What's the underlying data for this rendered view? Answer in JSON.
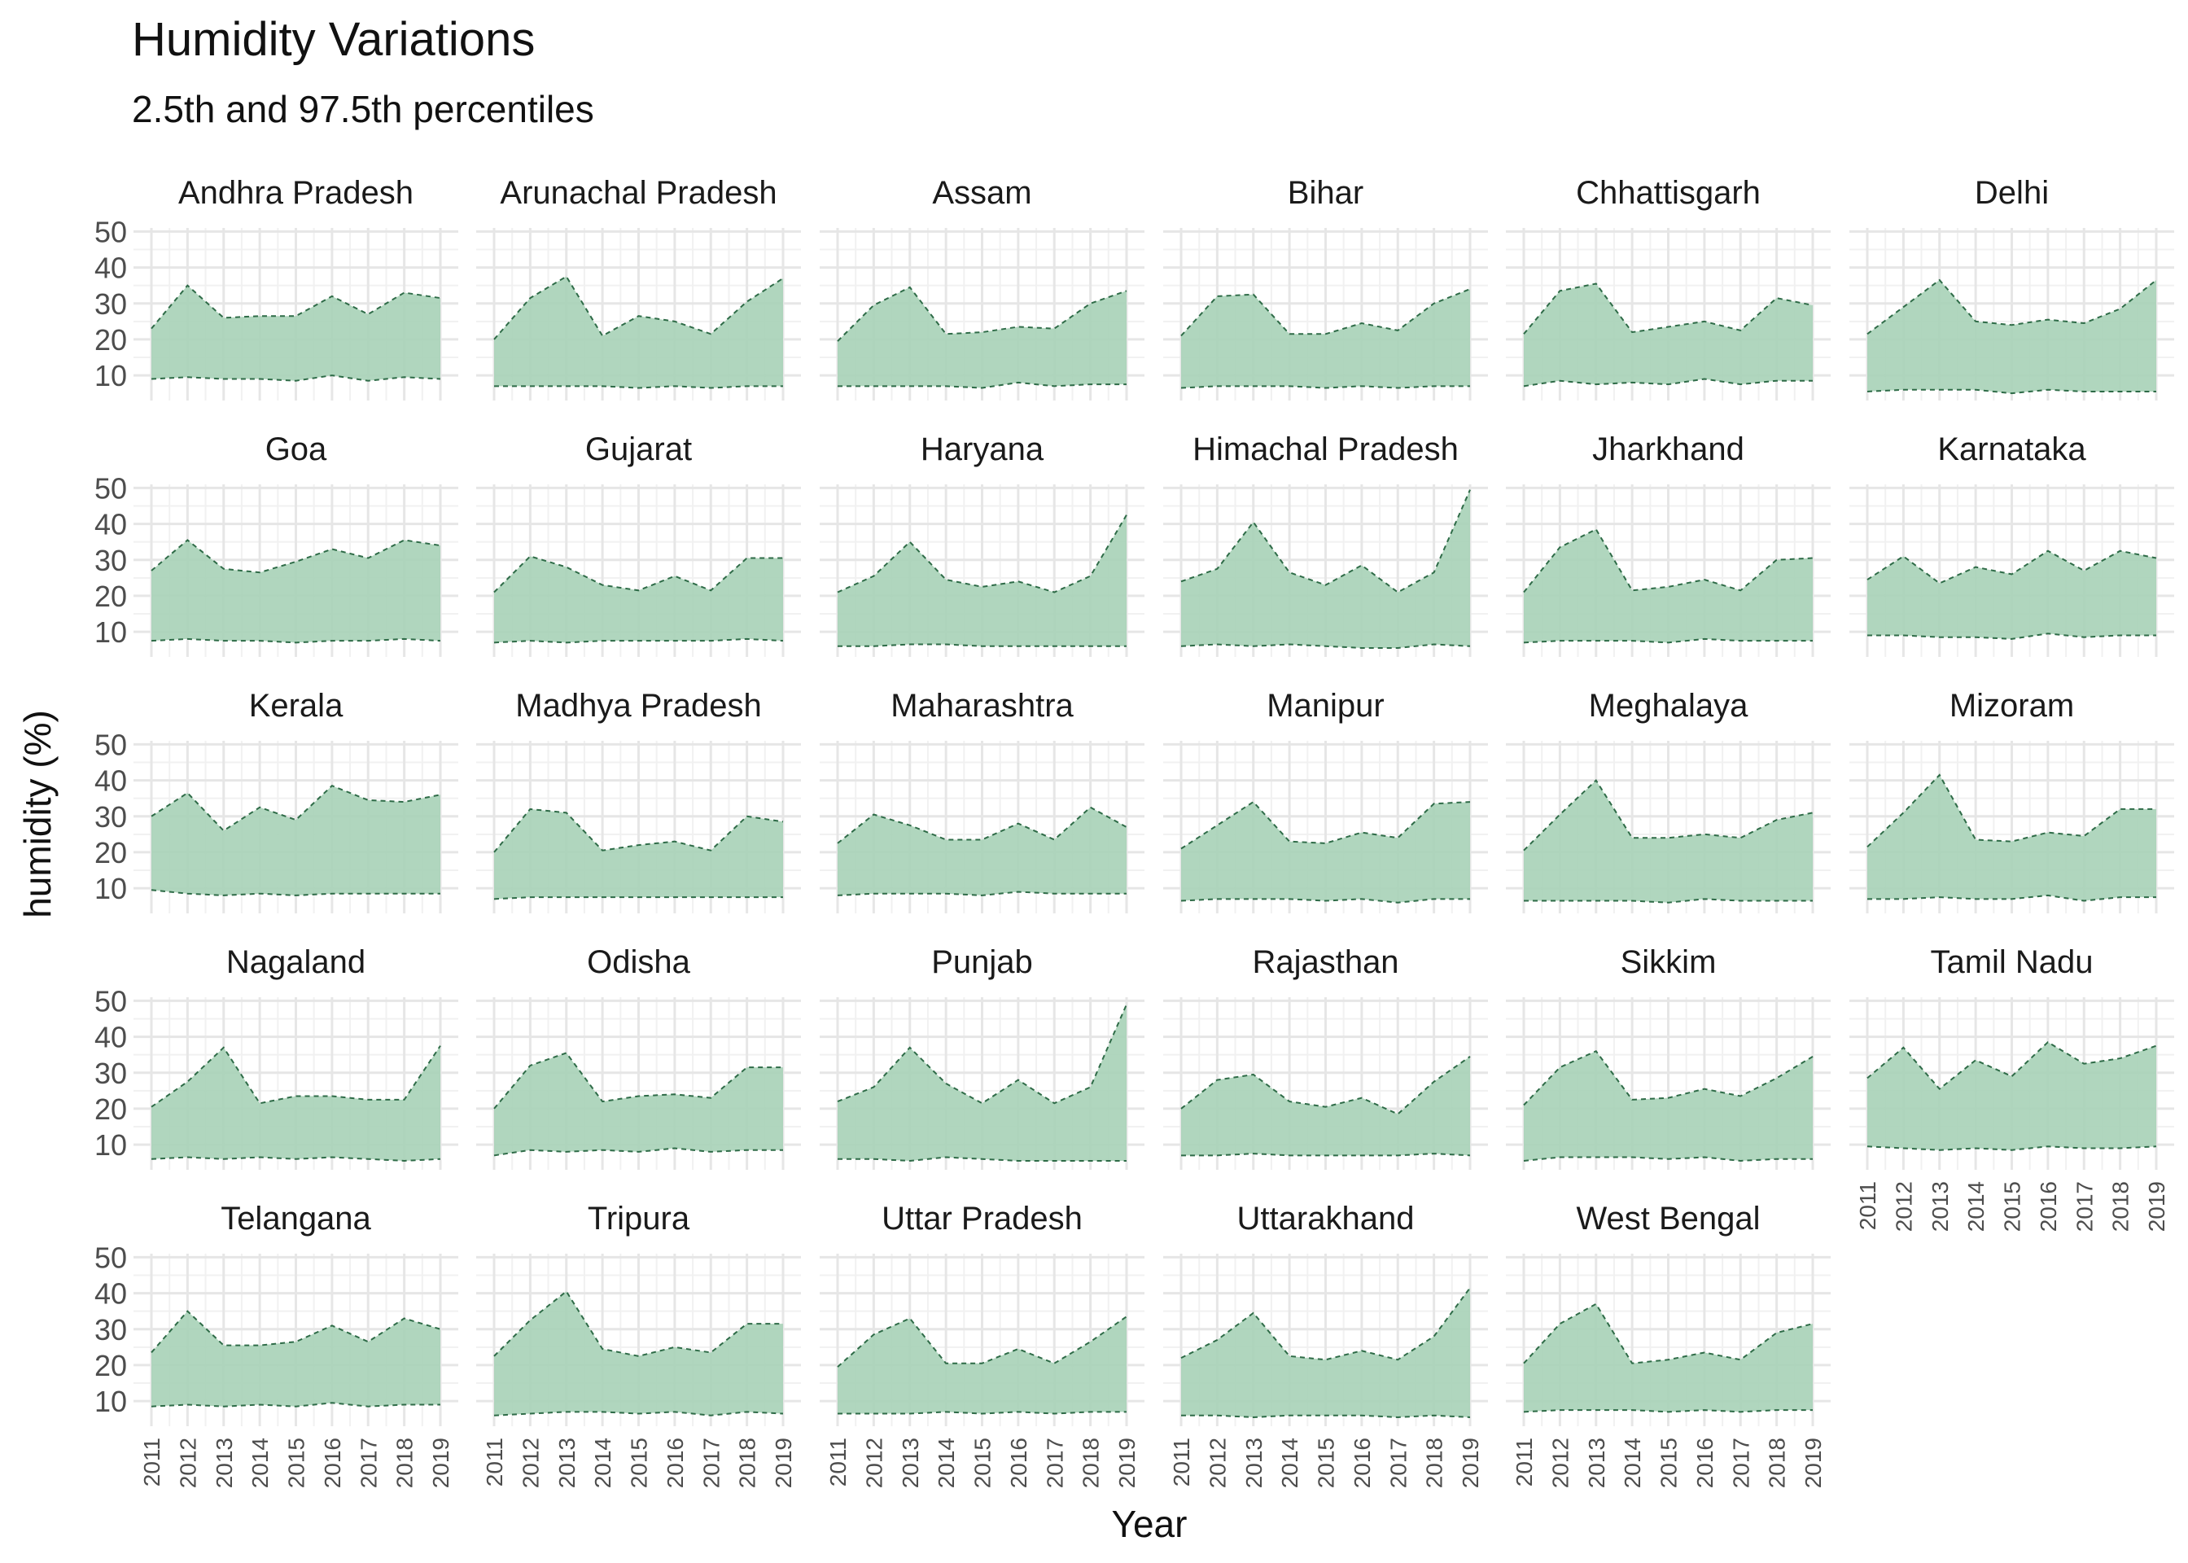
{
  "chart_data": {
    "type": "area",
    "title": "Humidity Variations",
    "subtitle": "2.5th and 97.5th percentiles",
    "xlabel": "Year",
    "ylabel": "humidity (%)",
    "x": [
      2011,
      2012,
      2013,
      2014,
      2015,
      2016,
      2017,
      2018,
      2019
    ],
    "x_tick_labels": [
      "2011",
      "2012",
      "2013",
      "2014",
      "2015",
      "2016",
      "2017",
      "2018",
      "2019"
    ],
    "y_ticks": [
      10,
      20,
      30,
      40,
      50
    ],
    "y_tick_labels": [
      "10",
      "20",
      "30",
      "40",
      "50"
    ],
    "ylim": [
      3,
      51
    ],
    "grid": true,
    "fill_color": "#a9d2b9",
    "line_color": "#2e6b47",
    "panels": [
      {
        "name": "Andhra Pradesh",
        "upper": [
          23,
          35,
          26,
          26.5,
          26.5,
          32,
          27,
          33,
          31.5
        ],
        "lower": [
          9,
          9.5,
          9,
          9,
          8.5,
          10,
          8.5,
          9.5,
          9
        ]
      },
      {
        "name": "Arunachal Pradesh",
        "upper": [
          20,
          31.5,
          37.5,
          21,
          26.5,
          25,
          21.5,
          30.5,
          37
        ],
        "lower": [
          7,
          7,
          7,
          7,
          6.5,
          7,
          6.5,
          7,
          7
        ]
      },
      {
        "name": "Assam",
        "upper": [
          19.5,
          29.5,
          34.5,
          21.5,
          22,
          23.5,
          23,
          30,
          33.5
        ],
        "lower": [
          7,
          7,
          7,
          7,
          6.5,
          8,
          7,
          7.5,
          7.5
        ]
      },
      {
        "name": "Bihar",
        "upper": [
          21,
          32,
          32.5,
          21.5,
          21.5,
          24.5,
          22.5,
          30,
          34
        ],
        "lower": [
          6.5,
          7,
          7,
          7,
          6.5,
          7,
          6.5,
          7,
          7
        ]
      },
      {
        "name": "Chhattisgarh",
        "upper": [
          21.5,
          33.5,
          35.5,
          22,
          23.5,
          25,
          22.5,
          31.5,
          29.5
        ],
        "lower": [
          7,
          8.5,
          7.5,
          8,
          7.5,
          9,
          7.5,
          8.5,
          8.5
        ]
      },
      {
        "name": "Delhi",
        "upper": [
          21.5,
          29,
          36.5,
          25,
          24,
          25.5,
          24.5,
          28.5,
          36.5
        ],
        "lower": [
          5.5,
          6,
          6,
          6,
          5,
          6,
          5.5,
          5.5,
          5.5
        ]
      },
      {
        "name": "Goa",
        "upper": [
          27,
          35.5,
          27.5,
          26.5,
          29.5,
          33,
          30.5,
          35.5,
          34
        ],
        "lower": [
          7.5,
          8,
          7.5,
          7.5,
          7,
          7.5,
          7.5,
          8,
          7.5
        ]
      },
      {
        "name": "Gujarat",
        "upper": [
          21,
          31,
          28,
          23,
          21.5,
          25.5,
          21.5,
          30.5,
          30.5
        ],
        "lower": [
          7,
          7.5,
          7,
          7.5,
          7.5,
          7.5,
          7.5,
          8,
          7.5
        ]
      },
      {
        "name": "Haryana",
        "upper": [
          21,
          25.5,
          35,
          24.5,
          22.5,
          24,
          21,
          25.5,
          42.5
        ],
        "lower": [
          6,
          6,
          6.5,
          6.5,
          6,
          6,
          6,
          6,
          6
        ]
      },
      {
        "name": "Himachal Pradesh",
        "upper": [
          24,
          27.5,
          40.5,
          26.5,
          23,
          28.5,
          21,
          26.5,
          49.5
        ],
        "lower": [
          6,
          6.5,
          6,
          6.5,
          6,
          5.5,
          5.5,
          6.5,
          6
        ]
      },
      {
        "name": "Jharkhand",
        "upper": [
          21,
          33.5,
          38.5,
          21.5,
          22.5,
          24.5,
          21.5,
          30,
          30.5
        ],
        "lower": [
          7,
          7.5,
          7.5,
          7.5,
          7,
          8,
          7.5,
          7.5,
          7.5
        ]
      },
      {
        "name": "Karnataka",
        "upper": [
          24.5,
          31,
          23.5,
          28,
          26,
          32.5,
          27,
          32.5,
          30.5
        ],
        "lower": [
          9,
          9,
          8.5,
          8.5,
          8,
          9.5,
          8.5,
          9,
          9
        ]
      },
      {
        "name": "Kerala",
        "upper": [
          30,
          36.5,
          26,
          32.5,
          29,
          38.5,
          34.5,
          34,
          36
        ],
        "lower": [
          9.5,
          8.5,
          8,
          8.5,
          8,
          8.5,
          8.5,
          8.5,
          8.5
        ]
      },
      {
        "name": "Madhya Pradesh",
        "upper": [
          20,
          32,
          31,
          20.5,
          22,
          23,
          20.5,
          30,
          28.5
        ],
        "lower": [
          7,
          7.5,
          7.5,
          7.5,
          7.5,
          7.5,
          7.5,
          7.5,
          7.5
        ]
      },
      {
        "name": "Maharashtra",
        "upper": [
          22.5,
          30.5,
          27.5,
          23.5,
          23.5,
          28,
          23.5,
          32.5,
          27
        ],
        "lower": [
          8,
          8.5,
          8.5,
          8.5,
          8,
          9,
          8.5,
          8.5,
          8.5
        ]
      },
      {
        "name": "Manipur",
        "upper": [
          21,
          27.5,
          34,
          23,
          22.5,
          25.5,
          24,
          33.5,
          34
        ],
        "lower": [
          6.5,
          7,
          7,
          7,
          6.5,
          7,
          6,
          7,
          7
        ]
      },
      {
        "name": "Meghalaya",
        "upper": [
          20.5,
          30.5,
          40,
          24,
          24,
          25,
          24,
          29,
          31
        ],
        "lower": [
          6.5,
          6.5,
          6.5,
          6.5,
          6,
          7,
          6.5,
          6.5,
          6.5
        ]
      },
      {
        "name": "Mizoram",
        "upper": [
          21.5,
          31,
          41.5,
          23.5,
          23,
          25.5,
          24.5,
          32,
          32
        ],
        "lower": [
          7,
          7,
          7.5,
          7,
          7,
          8,
          6.5,
          7.5,
          7.5
        ]
      },
      {
        "name": "Nagaland",
        "upper": [
          20.5,
          27.5,
          37,
          21.5,
          23.5,
          23.5,
          22.5,
          22.5,
          37.5
        ],
        "lower": [
          6,
          6.5,
          6,
          6.5,
          6,
          6.5,
          6,
          5.5,
          6
        ]
      },
      {
        "name": "Odisha",
        "upper": [
          20,
          32,
          35.5,
          22,
          23.5,
          24,
          23,
          31.5,
          31.5
        ],
        "lower": [
          7,
          8.5,
          8,
          8.5,
          8,
          9,
          8,
          8.5,
          8.5
        ]
      },
      {
        "name": "Punjab",
        "upper": [
          22,
          26,
          37,
          27,
          21.5,
          28,
          21.5,
          26,
          49
        ],
        "lower": [
          6,
          6,
          5.5,
          6.5,
          6,
          5.5,
          5.5,
          5.5,
          5.5
        ]
      },
      {
        "name": "Rajasthan",
        "upper": [
          20,
          28,
          29.5,
          22,
          20.5,
          23,
          18.5,
          27.5,
          34.5
        ],
        "lower": [
          7,
          7,
          7.5,
          7,
          7,
          7,
          7,
          7.5,
          7
        ]
      },
      {
        "name": "Sikkim",
        "upper": [
          21,
          31.5,
          36,
          22.5,
          23,
          25.5,
          23.5,
          28.5,
          34.5
        ],
        "lower": [
          5.5,
          6.5,
          6.5,
          6.5,
          6,
          6.5,
          5.5,
          6,
          6
        ]
      },
      {
        "name": "Tamil Nadu",
        "upper": [
          28.5,
          37,
          25.5,
          33.5,
          29,
          38.5,
          32.5,
          34,
          37.5
        ],
        "lower": [
          9.5,
          9,
          8.5,
          9,
          8.5,
          9.5,
          9,
          9,
          9.5
        ]
      },
      {
        "name": "Telangana",
        "upper": [
          23.5,
          35,
          25.5,
          25.5,
          26.5,
          31,
          26.5,
          33,
          30
        ],
        "lower": [
          8.5,
          9,
          8.5,
          9,
          8.5,
          9.5,
          8.5,
          9,
          9
        ]
      },
      {
        "name": "Tripura",
        "upper": [
          22.5,
          32.5,
          40.5,
          24.5,
          22.5,
          25,
          23.5,
          31.5,
          31.5
        ],
        "lower": [
          6,
          6.5,
          7,
          7,
          6.5,
          7,
          6,
          7,
          6.5
        ]
      },
      {
        "name": "Uttar Pradesh",
        "upper": [
          19.5,
          28.5,
          33,
          20.5,
          20.5,
          24.5,
          20.5,
          26.5,
          33.5
        ],
        "lower": [
          6.5,
          6.5,
          6.5,
          7,
          6.5,
          7,
          6.5,
          7,
          7
        ]
      },
      {
        "name": "Uttarakhand",
        "upper": [
          22,
          27,
          34.5,
          22.5,
          21.5,
          24,
          21.5,
          28,
          41.5
        ],
        "lower": [
          6,
          6,
          5.5,
          6,
          6,
          6,
          5.5,
          6,
          5.5
        ]
      },
      {
        "name": "West Bengal",
        "upper": [
          20.5,
          31.5,
          37,
          20.5,
          21.5,
          23.5,
          21.5,
          29,
          31.5
        ],
        "lower": [
          7,
          7.5,
          7.5,
          7.5,
          7,
          7.5,
          7,
          7.5,
          7.5
        ]
      }
    ]
  }
}
